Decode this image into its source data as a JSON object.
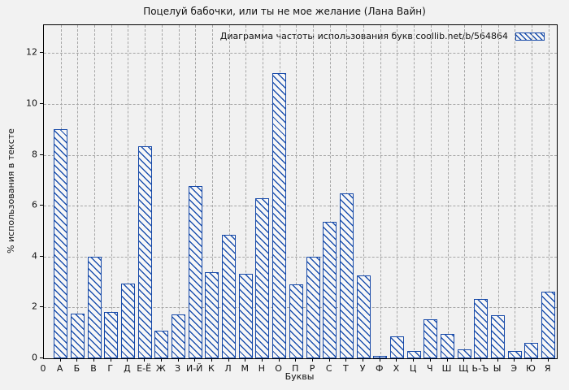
{
  "window": {
    "background": "#f2f2f2"
  },
  "chart_data": {
    "type": "bar",
    "title": "Поцелуй бабочки, или ты не мое желание (Лана Вайн)",
    "legend": "Диаграмма частоты использования букв coollib.net/b/564864",
    "legend_position": "top-right",
    "xlabel": "Буквы",
    "ylabel": "% использования в тексте",
    "x_origin_label": "0",
    "categories": [
      "А",
      "Б",
      "В",
      "Г",
      "Д",
      "Е-Ё",
      "Ж",
      "З",
      "И-Й",
      "К",
      "Л",
      "М",
      "Н",
      "О",
      "П",
      "Р",
      "С",
      "Т",
      "У",
      "Ф",
      "Х",
      "Ц",
      "Ч",
      "Ш",
      "Щ",
      "Ь-Ъ",
      "Ы",
      "Э",
      "Ю",
      "Я"
    ],
    "values": [
      9.0,
      1.75,
      4.0,
      1.83,
      2.93,
      8.35,
      1.08,
      1.73,
      6.77,
      3.38,
      4.85,
      3.33,
      6.3,
      11.2,
      2.9,
      3.99,
      5.38,
      6.5,
      3.25,
      0.1,
      0.85,
      0.3,
      1.53,
      0.95,
      0.35,
      2.33,
      1.68,
      0.29,
      0.6,
      2.62
    ],
    "yticks": [
      0,
      2,
      4,
      6,
      8,
      10,
      12
    ],
    "ylim": [
      0,
      13.1
    ],
    "grid": true,
    "bar_color": "#1649a8",
    "grid_color": "#a6a6a6",
    "hatch": "diagonal"
  }
}
